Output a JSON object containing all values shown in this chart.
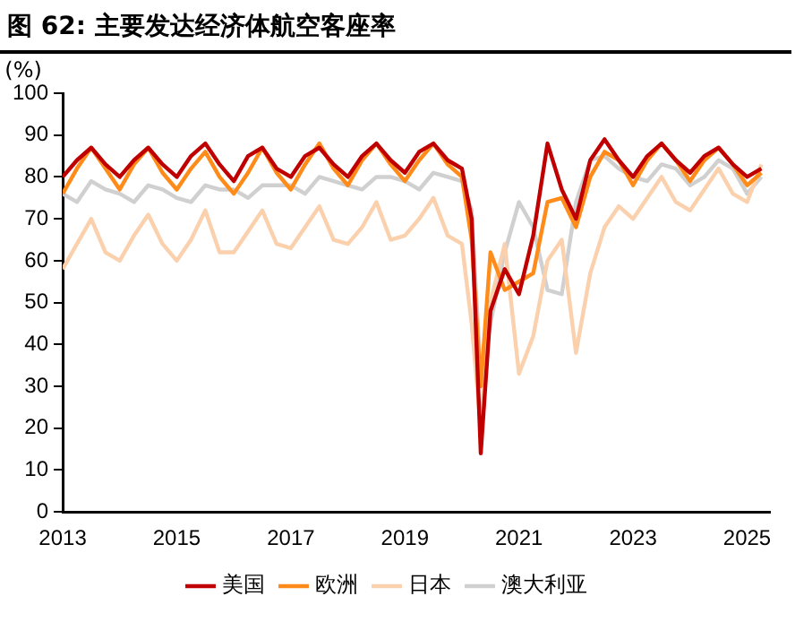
{
  "chart_data": {
    "type": "line",
    "title": "图 62: 主要发达经济体航空客座率",
    "ylabel": "(%)",
    "x": [
      2013,
      2013.25,
      2013.5,
      2013.75,
      2014,
      2014.25,
      2014.5,
      2014.75,
      2015,
      2015.25,
      2015.5,
      2015.75,
      2016,
      2016.25,
      2016.5,
      2016.75,
      2017,
      2017.25,
      2017.5,
      2017.75,
      2018,
      2018.25,
      2018.5,
      2018.75,
      2019,
      2019.25,
      2019.5,
      2019.75,
      2020,
      2020.17,
      2020.33,
      2020.5,
      2020.75,
      2021,
      2021.25,
      2021.5,
      2021.75,
      2022,
      2022.25,
      2022.5,
      2022.75,
      2023,
      2023.25,
      2023.5,
      2023.75,
      2024,
      2024.25,
      2024.5,
      2024.75,
      2025,
      2025.25
    ],
    "series": [
      {
        "name": "美国",
        "color": "#c00000",
        "values": [
          80,
          84,
          87,
          83,
          80,
          84,
          87,
          83,
          80,
          85,
          88,
          83,
          79,
          85,
          87,
          82,
          80,
          85,
          87,
          83,
          80,
          85,
          88,
          84,
          81,
          86,
          88,
          84,
          82,
          70,
          14,
          48,
          58,
          52,
          66,
          88,
          77,
          70,
          84,
          89,
          84,
          80,
          85,
          88,
          84,
          81,
          85,
          87,
          83,
          80,
          82
        ]
      },
      {
        "name": "欧洲",
        "color": "#ff8c1a",
        "values": [
          76,
          82,
          87,
          82,
          77,
          83,
          87,
          81,
          77,
          82,
          86,
          80,
          76,
          81,
          87,
          81,
          77,
          83,
          88,
          82,
          78,
          84,
          88,
          83,
          79,
          84,
          88,
          83,
          80,
          65,
          30,
          62,
          53,
          55,
          57,
          74,
          75,
          68,
          80,
          86,
          84,
          78,
          84,
          88,
          84,
          79,
          84,
          87,
          83,
          78,
          81
        ]
      },
      {
        "name": "日本",
        "color": "#fbd0ad",
        "values": [
          58,
          64,
          70,
          62,
          60,
          66,
          71,
          64,
          60,
          65,
          72,
          62,
          62,
          67,
          72,
          64,
          63,
          68,
          73,
          65,
          64,
          68,
          74,
          65,
          66,
          70,
          75,
          66,
          64,
          45,
          20,
          50,
          64,
          33,
          42,
          60,
          65,
          38,
          57,
          68,
          73,
          70,
          75,
          80,
          74,
          72,
          77,
          82,
          76,
          74,
          83
        ]
      },
      {
        "name": "澳大利亚",
        "color": "#d0d0d0",
        "values": [
          76,
          74,
          79,
          77,
          76,
          74,
          78,
          77,
          75,
          74,
          78,
          77,
          77,
          75,
          78,
          78,
          78,
          76,
          80,
          79,
          78,
          77,
          80,
          80,
          79,
          77,
          81,
          80,
          79,
          72,
          32,
          45,
          62,
          74,
          68,
          53,
          52,
          74,
          84,
          85,
          82,
          80,
          79,
          83,
          82,
          78,
          80,
          84,
          82,
          76,
          80
        ]
      }
    ],
    "xlim": [
      2013,
      2025.4
    ],
    "xticks": [
      2013,
      2015,
      2017,
      2019,
      2021,
      2023,
      2025
    ],
    "ylim": [
      0,
      100
    ],
    "yticks": [
      0,
      10,
      20,
      30,
      40,
      50,
      60,
      70,
      80,
      90,
      100
    ],
    "grid": false,
    "legend": "bottom",
    "marker": "none",
    "line_style": "solid"
  }
}
